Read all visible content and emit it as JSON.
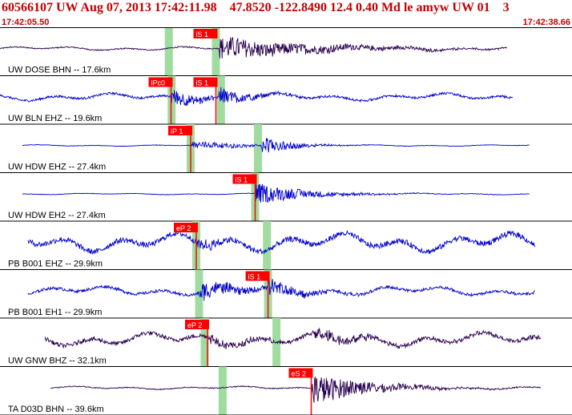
{
  "header": {
    "event_id": "60566107",
    "network": "UW",
    "datetime": "Aug 07, 2013 17:42:11.98",
    "latitude": "47.8520",
    "longitude": "-122.8490",
    "depth": "12.4",
    "magnitude": "0.40",
    "mag_type": "Md",
    "event_type": "le",
    "author": "amyw",
    "source": "UW",
    "version": "01",
    "extra": "3"
  },
  "time_start": "17:42:05.50",
  "time_end": "17:42:38.66",
  "colors": {
    "title": "#c00000",
    "pick_box": "#ff0000",
    "pick_text": "#ffffff",
    "highlight": "#a0dca0",
    "trace_blue": "#0000cc",
    "trace_purple": "#2a0050",
    "divider": "#000000"
  },
  "traces": [
    {
      "label": "UW DOSE BHN -- 17.6km",
      "color": "purple",
      "amp": 0.09,
      "start": 0.0,
      "end": 0.905,
      "events": [
        {
          "t": 0.39,
          "amp": 0.55,
          "decay": 0.17
        }
      ],
      "highlights": [
        0.301,
        0.385
      ],
      "picks": [
        {
          "t": 0.385,
          "label": "iS 1",
          "line": false
        }
      ]
    },
    {
      "label": "UW BLN EHZ -- 19.6km",
      "color": "blue",
      "amp": 0.17,
      "start": 0.0,
      "end": 0.915,
      "events": [
        {
          "t": 0.305,
          "amp": 0.45,
          "decay": 0.05
        },
        {
          "t": 0.39,
          "amp": 0.45,
          "decay": 0.05
        }
      ],
      "highlights": [
        0.306,
        0.394
      ],
      "picks": [
        {
          "t": 0.305,
          "label": "iPc0",
          "line": true
        },
        {
          "t": 0.385,
          "label": "iS 1",
          "line": true
        }
      ]
    },
    {
      "label": "UW HDW EHZ -- 27.4km",
      "color": "blue",
      "amp": 0.035,
      "start": 0.04,
      "end": 0.945,
      "events": [
        {
          "t": 0.34,
          "amp": 0.2,
          "decay": 0.1
        },
        {
          "t": 0.465,
          "amp": 0.45,
          "decay": 0.05
        }
      ],
      "highlights": [
        0.34,
        0.46
      ],
      "picks": [
        {
          "t": 0.34,
          "label": "iP 1",
          "line": true
        }
      ]
    },
    {
      "label": "UW HDW EH2 -- 27.4km",
      "color": "blue",
      "amp": 0.035,
      "start": 0.04,
      "end": 0.945,
      "events": [
        {
          "t": 0.455,
          "amp": 0.5,
          "decay": 0.09
        }
      ],
      "highlights": [
        0.455
      ],
      "picks": [
        {
          "t": 0.455,
          "label": "iS 1",
          "line": true
        }
      ]
    },
    {
      "label": "PB B001 EHZ -- 29.9km",
      "color": "blue",
      "amp": 0.42,
      "start": 0.05,
      "end": 0.955,
      "events": [
        {
          "t": 0.35,
          "amp": 0.3,
          "decay": 0.05
        }
      ],
      "highlights": [
        0.35,
        0.476
      ],
      "picks": [
        {
          "t": 0.35,
          "label": "eP 2",
          "line": true
        }
      ]
    },
    {
      "label": "PB B001 EH1 -- 29.9km",
      "color": "blue",
      "amp": 0.22,
      "start": 0.05,
      "end": 0.955,
      "events": [
        {
          "t": 0.355,
          "amp": 0.45,
          "decay": 0.07
        },
        {
          "t": 0.478,
          "amp": 0.4,
          "decay": 0.06
        }
      ],
      "highlights": [
        0.355,
        0.478
      ],
      "picks": [
        {
          "t": 0.478,
          "label": "iS 1",
          "line": true
        }
      ]
    },
    {
      "label": "UW GNW BHZ -- 32.1km",
      "color": "purple",
      "amp": 0.32,
      "start": 0.08,
      "end": 0.965,
      "events": [
        {
          "t": 0.375,
          "amp": 0.2,
          "decay": 0.1
        },
        {
          "t": 0.56,
          "amp": 0.3,
          "decay": 0.1
        }
      ],
      "highlights": [
        0.365,
        0.493
      ],
      "picks": [
        {
          "t": 0.37,
          "label": "eP 2",
          "line": true
        }
      ]
    },
    {
      "label": "TA D03D BHN -- 39.6km",
      "color": "purple",
      "amp": 0.07,
      "start": 0.09,
      "end": 0.965,
      "events": [
        {
          "t": 0.555,
          "amp": 0.75,
          "decay": 0.1
        }
      ],
      "highlights": [
        0.397
      ],
      "picks": [
        {
          "t": 0.555,
          "label": "eS 2",
          "line": true
        }
      ]
    }
  ]
}
